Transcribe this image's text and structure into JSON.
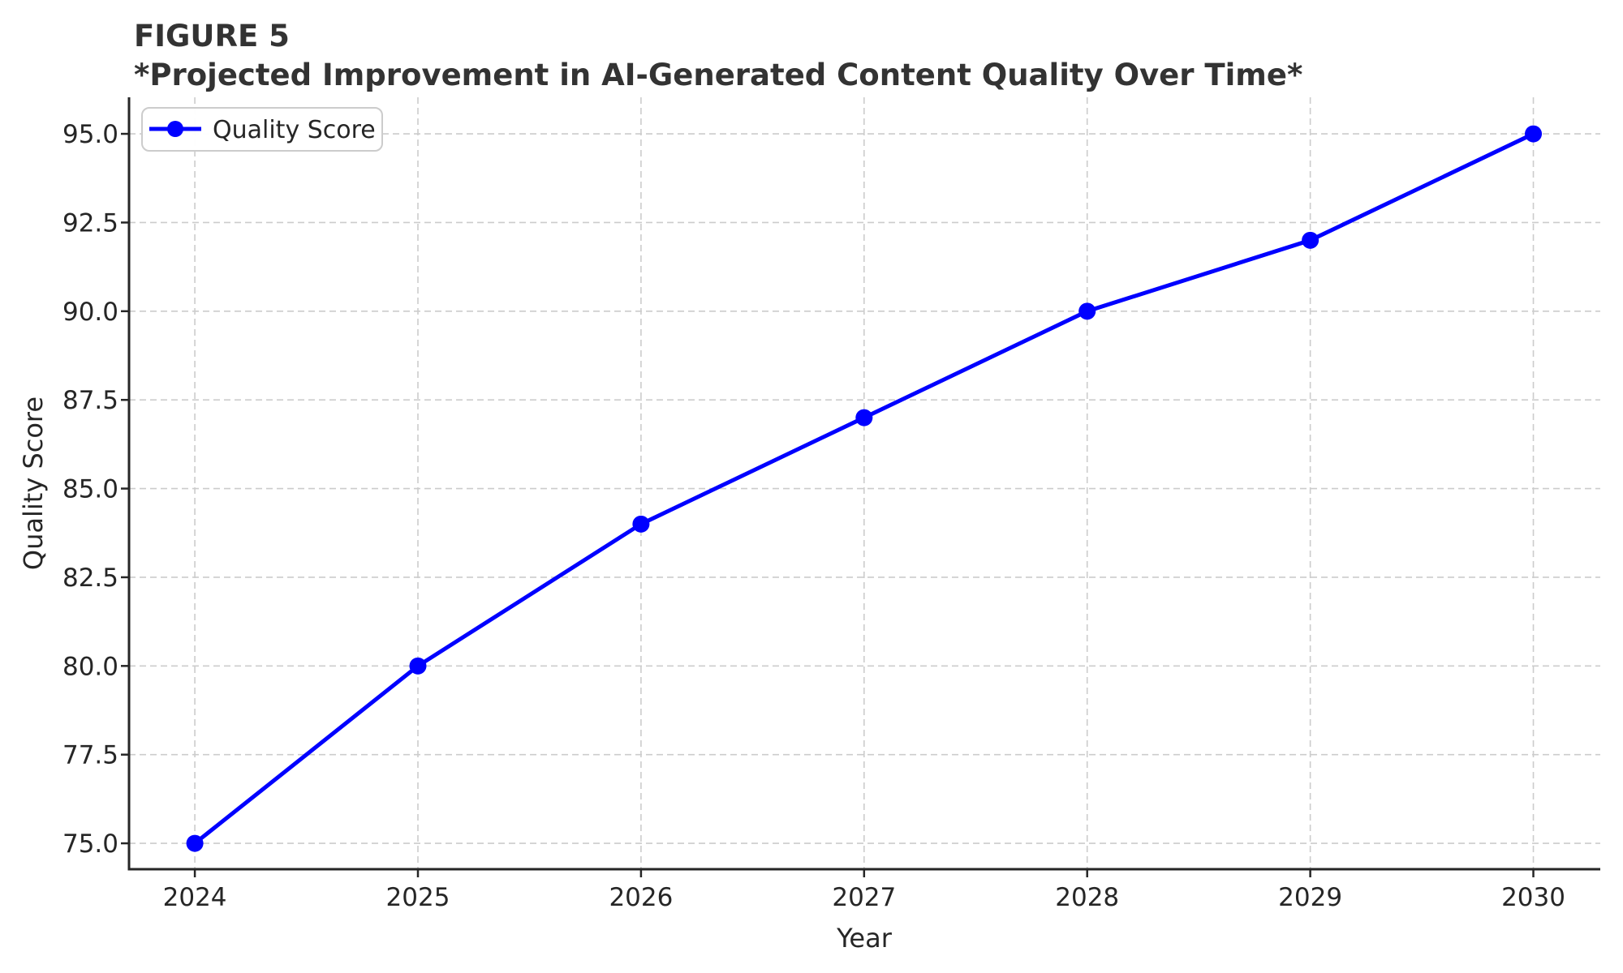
{
  "figure": {
    "label": "FIGURE 5",
    "title": "*Projected Improvement in AI-Generated Content Quality Over Time*"
  },
  "chart_data": {
    "type": "line",
    "title": "FIGURE 5 *Projected Improvement in AI-Generated Content Quality Over Time*",
    "xlabel": "Year",
    "ylabel": "Quality Score",
    "x": [
      2024,
      2025,
      2026,
      2027,
      2028,
      2029,
      2030
    ],
    "series": [
      {
        "name": "Quality Score",
        "values": [
          75,
          80,
          84,
          87,
          90,
          92,
          95
        ],
        "color": "#0000ff",
        "marker": "circle",
        "line_width": 5
      }
    ],
    "xtick_labels": [
      "2024",
      "2025",
      "2026",
      "2027",
      "2028",
      "2029",
      "2030"
    ],
    "yticks": [
      75.0,
      77.5,
      80.0,
      82.5,
      85.0,
      87.5,
      90.0,
      92.5,
      95.0
    ],
    "ytick_labels": [
      "75.0",
      "77.5",
      "80.0",
      "82.5",
      "85.0",
      "87.5",
      "90.0",
      "92.5",
      "95.0"
    ],
    "xlim": [
      2023.705,
      2030.3
    ],
    "ylim": [
      74.27,
      96.03
    ],
    "grid": true,
    "grid_color": "#cccccc",
    "spine_color": "#262626",
    "legend": {
      "position": "upper left",
      "entries": [
        "Quality Score"
      ]
    }
  }
}
